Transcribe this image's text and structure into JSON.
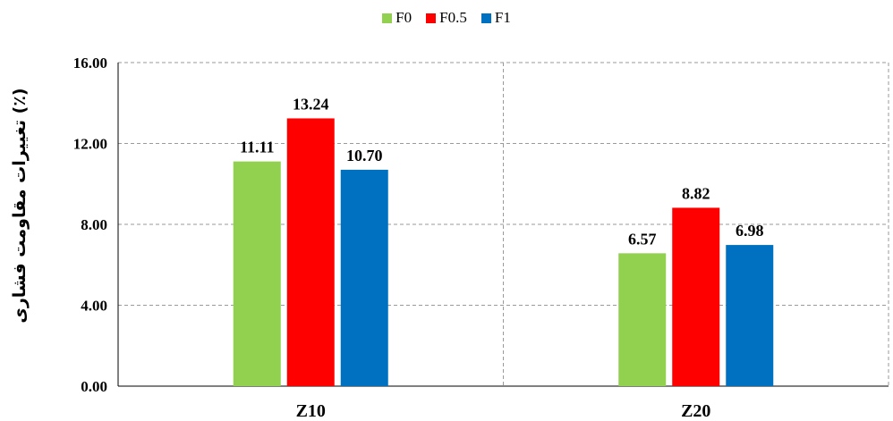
{
  "chart_data": {
    "type": "bar",
    "title": "",
    "xlabel": "",
    "ylabel": "تغییرات مقاومت فشاری (٪)",
    "categories": [
      "Z10",
      "Z20"
    ],
    "series": [
      {
        "name": "F0",
        "color": "#92D050",
        "values": [
          11.11,
          6.57
        ],
        "labels": [
          "11.11",
          "6.57"
        ]
      },
      {
        "name": "F0.5",
        "color": "#FF0000",
        "values": [
          13.24,
          8.82
        ],
        "labels": [
          "13.24",
          "8.82"
        ]
      },
      {
        "name": "F1",
        "color": "#0070C0",
        "values": [
          10.7,
          6.98
        ],
        "labels": [
          "10.70",
          "6.98"
        ]
      }
    ],
    "ylim": [
      0,
      16
    ],
    "yticks": [
      0,
      4,
      8,
      12,
      16
    ],
    "ytick_labels": [
      "0.00",
      "4.00",
      "8.00",
      "12.00",
      "16.00"
    ],
    "grid": true,
    "legend_position": "top-center"
  }
}
